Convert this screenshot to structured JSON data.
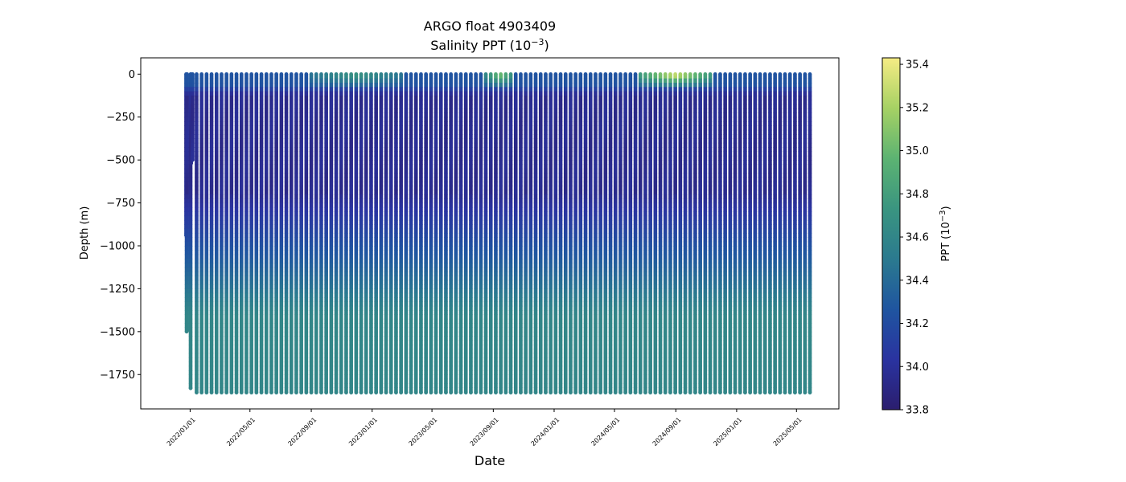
{
  "chart_data": {
    "type": "scatter",
    "title_line1": "ARGO float 4903409",
    "title_line2_prefix": "Salinity PPT (10",
    "title_line2_exp": "−3",
    "title_line2_suffix": ")",
    "xlabel": "Date",
    "ylabel": "Depth (m)",
    "colorbar_label_prefix": "PPT (10",
    "colorbar_label_exp": "−3",
    "colorbar_label_suffix": ")",
    "colormap": "viridis-like (dark blue → teal → green → yellow)",
    "colormap_stops": [
      "#2b1e6e",
      "#2a33a0",
      "#1f55a0",
      "#2b7a8f",
      "#3a9580",
      "#5cb372",
      "#a6d164",
      "#f5ec84"
    ],
    "clim": [
      33.8,
      35.43
    ],
    "colorbar_ticks": [
      33.8,
      34.0,
      34.2,
      34.4,
      34.6,
      34.8,
      35.0,
      35.2,
      35.4
    ],
    "colorbar_tick_labels": [
      "33.8",
      "34.0",
      "34.2",
      "34.4",
      "34.6",
      "34.8",
      "35.0",
      "35.2",
      "35.4"
    ],
    "ylim": [
      -1950,
      95
    ],
    "yticks": [
      0,
      -250,
      -500,
      -750,
      -1000,
      -1250,
      -1500,
      -1750
    ],
    "ytick_labels": [
      "0",
      "−250",
      "−500",
      "−750",
      "−1000",
      "−1250",
      "−1500",
      "−1750"
    ],
    "xlim": [
      "2021-09-24",
      "2025-07-25"
    ],
    "xticks": [
      "2022-01-01",
      "2022-05-01",
      "2022-09-01",
      "2023-01-01",
      "2023-05-01",
      "2023-09-01",
      "2024-01-01",
      "2024-05-01",
      "2024-09-01",
      "2025-01-01",
      "2025-05-01"
    ],
    "xtick_labels": [
      "2022/01/01",
      "2022/05/01",
      "2022/09/01",
      "2023/01/01",
      "2023/05/01",
      "2023/09/01",
      "2024/01/01",
      "2024/05/01",
      "2024/09/01",
      "2025/01/01",
      "2025/05/01"
    ],
    "first_profile_date": "2021-12-24",
    "last_profile_date": "2025-06-02",
    "profile_interval_days": 10,
    "typical_max_depth": -1855,
    "early_profiles": [
      {
        "date": "2021-12-24",
        "max_depth": -940
      },
      {
        "date": "2021-12-25",
        "max_depth": -1500
      },
      {
        "date": "2021-12-26",
        "max_depth": -1495
      },
      {
        "date": "2022-01-02",
        "max_depth": -1830
      },
      {
        "date": "2022-01-03",
        "max_depth": -520
      },
      {
        "date": "2022-01-06",
        "max_depth": -500
      }
    ],
    "salinity_profile_summary": {
      "surface": 34.25,
      "min_layer_depth_range": [
        -150,
        -600
      ],
      "min_layer_value": 33.95,
      "deep_value": 34.6,
      "surface_high_periods": [
        {
          "from": "2022-09-01",
          "to": "2023-03-01",
          "max": 34.75
        },
        {
          "from": "2023-08-15",
          "to": "2023-10-15",
          "max": 35.1
        },
        {
          "from": "2024-06-15",
          "to": "2024-11-15",
          "max": 35.4
        }
      ]
    },
    "grid": false,
    "legend": "none"
  }
}
